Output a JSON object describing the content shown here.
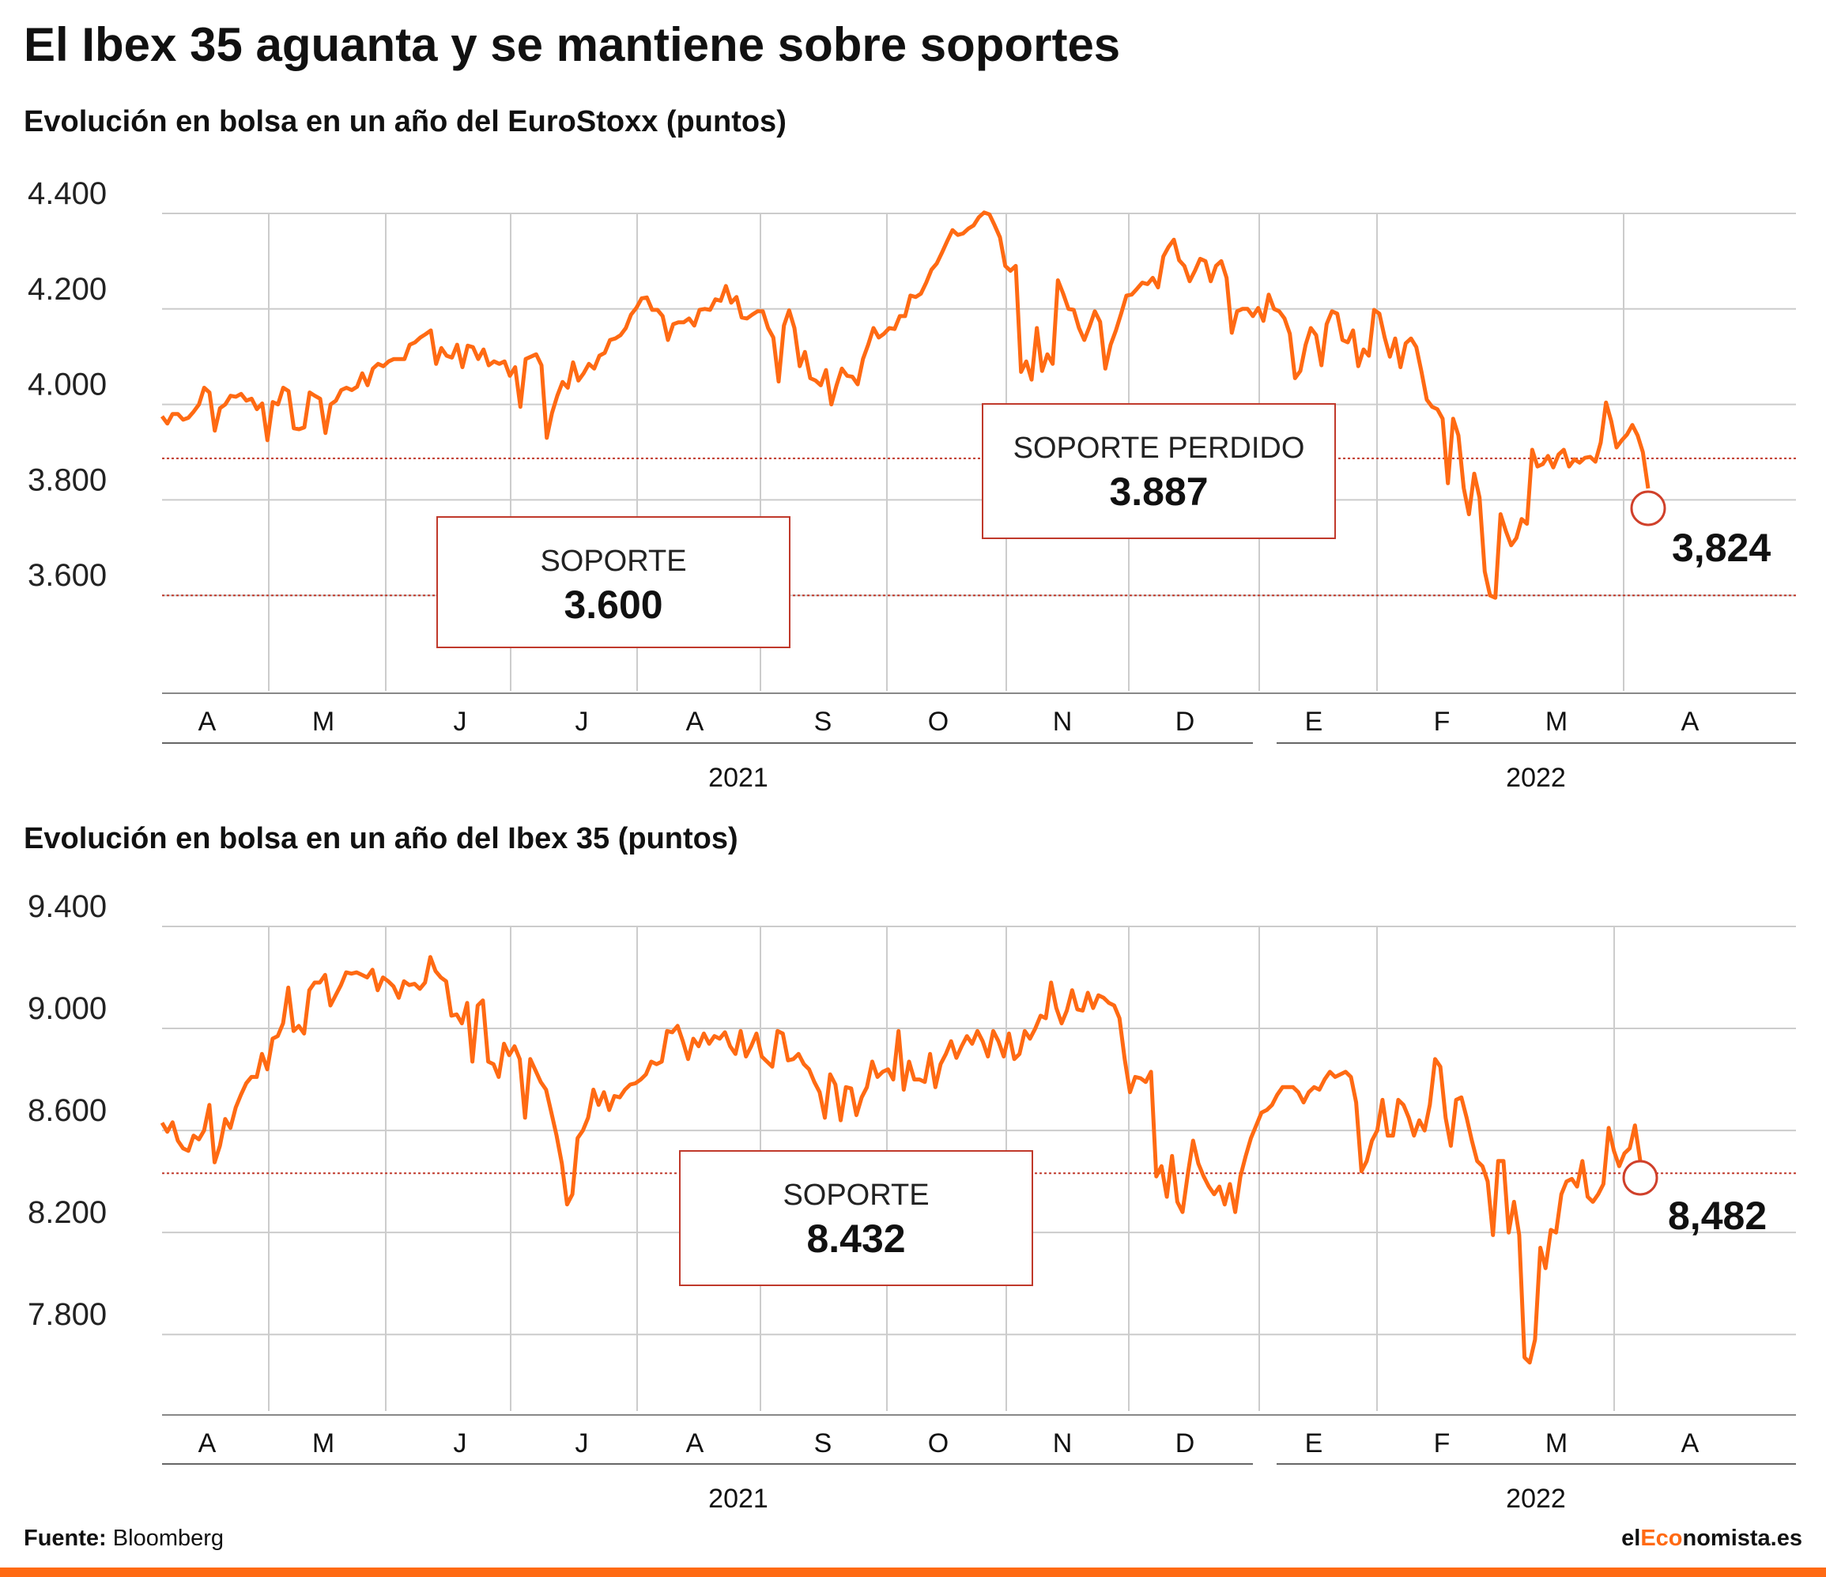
{
  "title": "El Ibex 35 aguanta y se mantiene sobre soportes",
  "source": {
    "label": "Fuente:",
    "value": "Bloomberg"
  },
  "brand": {
    "pre": "el",
    "accent": "Eco",
    "post": "nomista.es"
  },
  "colors": {
    "line": "#ff6a13",
    "support": "#c0392b",
    "box": "#c0392b",
    "grid": "#cccccc",
    "marker": "#d0402a"
  },
  "chart_data": [
    {
      "type": "line",
      "title": "Evolución en bolsa en un año del EuroStoxx (puntos)",
      "ylim": [
        3400,
        4400
      ],
      "yticks": [
        3600,
        3800,
        4000,
        4200,
        4400
      ],
      "ytick_labels": [
        "3.600",
        "3.800",
        "4.000",
        "4.200",
        "4.400"
      ],
      "month_labels": [
        "A",
        "M",
        "J",
        "J",
        "A",
        "S",
        "O",
        "N",
        "D",
        "E",
        "F",
        "M",
        "A"
      ],
      "years": [
        "2021",
        "2022"
      ],
      "support_lines": [
        3887,
        3600
      ],
      "annotations": [
        {
          "label": "SOPORTE",
          "value": "3.600"
        },
        {
          "label": "SOPORTE PERDIDO",
          "value": "3.887"
        }
      ],
      "last_value": {
        "value": 3824,
        "label": "3,824"
      },
      "series": [
        {
          "values": [
            3975,
            3960,
            3980,
            3980,
            3968,
            3972,
            3985,
            4000,
            4035,
            4025,
            3945,
            3992,
            4000,
            4018,
            4016,
            4022,
            4008,
            4012,
            3990,
            4002,
            3925,
            4005,
            4000,
            4035,
            4028,
            3950,
            3948,
            3952,
            4025,
            4018,
            4012,
            3940,
            4000,
            4008,
            4030,
            4035,
            4030,
            4037,
            4065,
            4040,
            4075,
            4085,
            4080,
            4090,
            4095,
            4095,
            4095,
            4125,
            4130,
            4140,
            4147,
            4155,
            4085,
            4118,
            4102,
            4098,
            4125,
            4078,
            4123,
            4120,
            4095,
            4115,
            4082,
            4090,
            4085,
            4090,
            4060,
            4078,
            3995,
            4095,
            4100,
            4105,
            4082,
            3930,
            3982,
            4018,
            4047,
            4035,
            4088,
            4050,
            4065,
            4085,
            4075,
            4102,
            4108,
            4135,
            4138,
            4145,
            4160,
            4188,
            4202,
            4222,
            4224,
            4198,
            4198,
            4185,
            4135,
            4168,
            4172,
            4172,
            4180,
            4165,
            4198,
            4200,
            4198,
            4220,
            4217,
            4248,
            4213,
            4225,
            4182,
            4180,
            4188,
            4195,
            4195,
            4160,
            4140,
            4048,
            4165,
            4197,
            4160,
            4080,
            4110,
            4055,
            4050,
            4040,
            4072,
            4000,
            4040,
            4075,
            4060,
            4058,
            4042,
            4095,
            4125,
            4160,
            4140,
            4148,
            4160,
            4158,
            4185,
            4185,
            4228,
            4225,
            4232,
            4255,
            4282,
            4295,
            4318,
            4342,
            4365,
            4355,
            4358,
            4368,
            4375,
            4392,
            4402,
            4398,
            4375,
            4350,
            4290,
            4280,
            4290,
            4068,
            4090,
            4052,
            4160,
            4070,
            4105,
            4085,
            4260,
            4232,
            4200,
            4198,
            4160,
            4135,
            4163,
            4195,
            4173,
            4075,
            4125,
            4155,
            4190,
            4228,
            4230,
            4242,
            4255,
            4252,
            4265,
            4245,
            4310,
            4330,
            4345,
            4302,
            4290,
            4258,
            4280,
            4305,
            4300,
            4258,
            4290,
            4300,
            4265,
            4150,
            4195,
            4200,
            4200,
            4185,
            4202,
            4175,
            4230,
            4200,
            4195,
            4180,
            4148,
            4055,
            4070,
            4125,
            4160,
            4145,
            4082,
            4168,
            4195,
            4190,
            4135,
            4130,
            4155,
            4080,
            4115,
            4102,
            4198,
            4190,
            4140,
            4100,
            4138,
            4078,
            4128,
            4138,
            4120,
            4068,
            4010,
            3995,
            3990,
            3970,
            3835,
            3970,
            3935,
            3825,
            3770,
            3855,
            3805,
            3650,
            3600,
            3595,
            3770,
            3735,
            3705,
            3720,
            3760,
            3750,
            3905,
            3870,
            3875,
            3892,
            3868,
            3895,
            3905,
            3870,
            3885,
            3878,
            3888,
            3890,
            3880,
            3920,
            4004,
            3965,
            3910,
            3925,
            3937,
            3957,
            3935,
            3900,
            3824
          ]
        }
      ]
    },
    {
      "type": "line",
      "title": "Evolución en bolsa en un año del Ibex 35 (puntos)",
      "ylim": [
        7500,
        9400
      ],
      "yticks": [
        7800,
        8200,
        8600,
        9000,
        9400
      ],
      "ytick_labels": [
        "7.800",
        "8.200",
        "8.600",
        "9.000",
        "9.400"
      ],
      "month_labels": [
        "A",
        "M",
        "J",
        "J",
        "A",
        "S",
        "O",
        "N",
        "D",
        "E",
        "F",
        "M",
        "A"
      ],
      "years": [
        "2021",
        "2022"
      ],
      "support_lines": [
        8432
      ],
      "annotations": [
        {
          "label": "SOPORTE",
          "value": "8.432"
        }
      ],
      "last_value": {
        "value": 8482,
        "label": "8,482"
      },
      "series": [
        {
          "values": [
            8630,
            8595,
            8632,
            8560,
            8530,
            8520,
            8580,
            8565,
            8600,
            8700,
            8475,
            8540,
            8645,
            8610,
            8690,
            8740,
            8785,
            8810,
            8810,
            8900,
            8840,
            8960,
            8970,
            9020,
            9160,
            8990,
            9010,
            8980,
            9150,
            9180,
            9180,
            9210,
            9090,
            9130,
            9170,
            9220,
            9215,
            9220,
            9210,
            9200,
            9230,
            9150,
            9200,
            9185,
            9165,
            9120,
            9185,
            9170,
            9175,
            9155,
            9180,
            9280,
            9225,
            9200,
            9185,
            9050,
            9055,
            9020,
            9100,
            8870,
            9090,
            9110,
            8870,
            8860,
            8810,
            8940,
            8895,
            8930,
            8880,
            8650,
            8880,
            8835,
            8790,
            8760,
            8670,
            8580,
            8470,
            8310,
            8350,
            8570,
            8600,
            8650,
            8760,
            8700,
            8750,
            8680,
            8735,
            8730,
            8760,
            8780,
            8785,
            8800,
            8820,
            8870,
            8860,
            8870,
            8990,
            8985,
            9010,
            8950,
            8880,
            8960,
            8930,
            8980,
            8940,
            8970,
            8960,
            8985,
            8930,
            8900,
            8990,
            8890,
            8930,
            8980,
            8890,
            8870,
            8850,
            8990,
            8980,
            8875,
            8880,
            8900,
            8860,
            8840,
            8790,
            8750,
            8650,
            8820,
            8780,
            8640,
            8770,
            8765,
            8660,
            8730,
            8770,
            8870,
            8810,
            8830,
            8840,
            8800,
            8990,
            8760,
            8870,
            8800,
            8800,
            8790,
            8900,
            8770,
            8860,
            8900,
            8950,
            8885,
            8930,
            8970,
            8940,
            8990,
            8950,
            8890,
            8990,
            8950,
            8890,
            8980,
            8880,
            8900,
            8990,
            8960,
            9000,
            9050,
            9040,
            9180,
            9080,
            9020,
            9070,
            9150,
            9075,
            9070,
            9140,
            9080,
            9130,
            9120,
            9100,
            9090,
            9040,
            8880,
            8750,
            8810,
            8805,
            8790,
            8830,
            8420,
            8460,
            8340,
            8500,
            8320,
            8280,
            8430,
            8560,
            8470,
            8420,
            8380,
            8350,
            8380,
            8310,
            8390,
            8280,
            8420,
            8500,
            8570,
            8620,
            8670,
            8680,
            8700,
            8740,
            8770,
            8770,
            8770,
            8750,
            8710,
            8750,
            8770,
            8760,
            8800,
            8830,
            8810,
            8820,
            8830,
            8810,
            8710,
            8440,
            8480,
            8560,
            8600,
            8720,
            8580,
            8580,
            8720,
            8700,
            8650,
            8580,
            8640,
            8600,
            8700,
            8880,
            8850,
            8650,
            8540,
            8720,
            8730,
            8650,
            8560,
            8480,
            8460,
            8400,
            8190,
            8480,
            8480,
            8200,
            8320,
            8190,
            7710,
            7690,
            7780,
            8140,
            8060,
            8210,
            8200,
            8350,
            8400,
            8410,
            8380,
            8480,
            8340,
            8320,
            8350,
            8390,
            8610,
            8520,
            8460,
            8510,
            8530,
            8620,
            8482
          ]
        }
      ]
    }
  ]
}
